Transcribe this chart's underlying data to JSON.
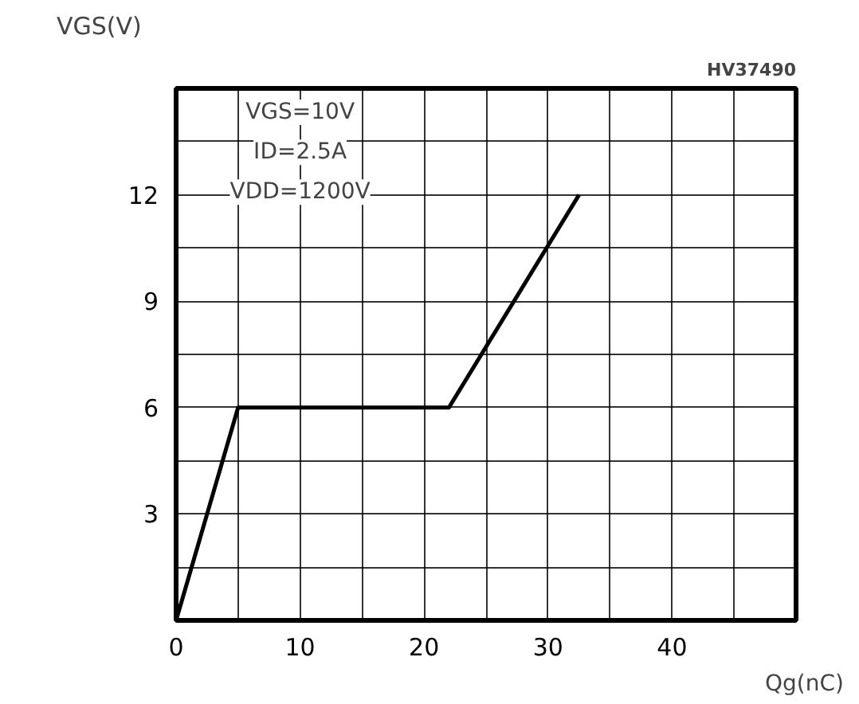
{
  "chart_data": {
    "type": "line",
    "x": [
      0,
      5,
      22,
      32.5
    ],
    "series": [
      {
        "color": "#000000",
        "values": [
          0,
          6,
          6,
          12
        ]
      }
    ],
    "xlabel": "Qg(nC)",
    "ylabel": "VGS(V)",
    "xlim": [
      0,
      50
    ],
    "ylim": [
      0,
      15
    ],
    "xticks": [
      0,
      {
        "value": 5,
        "label": null
      },
      10,
      {
        "value": 15,
        "label": null
      },
      20,
      {
        "value": 25,
        "label": null
      },
      30,
      {
        "value": 35,
        "label": null
      },
      40,
      {
        "value": 45,
        "label": null
      }
    ],
    "yticks": [
      {
        "value": 1.5,
        "label": null
      },
      3,
      {
        "value": 4.5,
        "label": null
      },
      6,
      {
        "value": 7.5,
        "label": null
      },
      9,
      {
        "value": 10.5,
        "label": null
      },
      12,
      {
        "value": 13.5,
        "label": null
      }
    ],
    "annotations": [
      "HV37490",
      "VGS=10V",
      "ID=2.5A",
      "VDD=1200V"
    ],
    "grid": true,
    "marker": "none",
    "line_style": "solid"
  }
}
